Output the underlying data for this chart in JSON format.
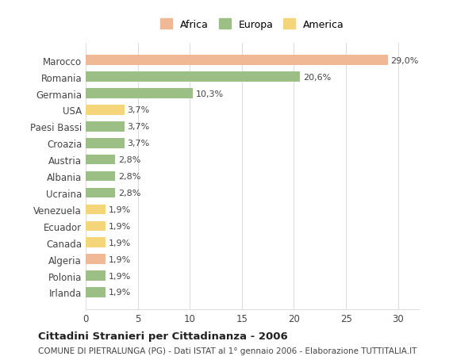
{
  "countries": [
    "Marocco",
    "Romania",
    "Germania",
    "USA",
    "Paesi Bassi",
    "Croazia",
    "Austria",
    "Albania",
    "Ucraina",
    "Venezuela",
    "Ecuador",
    "Canada",
    "Algeria",
    "Polonia",
    "Irlanda"
  ],
  "values": [
    29.0,
    20.6,
    10.3,
    3.7,
    3.7,
    3.7,
    2.8,
    2.8,
    2.8,
    1.9,
    1.9,
    1.9,
    1.9,
    1.9,
    1.9
  ],
  "labels": [
    "29,0%",
    "20,6%",
    "10,3%",
    "3,7%",
    "3,7%",
    "3,7%",
    "2,8%",
    "2,8%",
    "2,8%",
    "1,9%",
    "1,9%",
    "1,9%",
    "1,9%",
    "1,9%",
    "1,9%"
  ],
  "colors": [
    "#F0B895",
    "#9BBF85",
    "#9BBF85",
    "#F5D57A",
    "#9BBF85",
    "#9BBF85",
    "#9BBF85",
    "#9BBF85",
    "#9BBF85",
    "#F5D57A",
    "#F5D57A",
    "#F5D57A",
    "#F0B895",
    "#9BBF85",
    "#9BBF85"
  ],
  "legend": [
    {
      "label": "Africa",
      "color": "#F0B895"
    },
    {
      "label": "Europa",
      "color": "#9BBF85"
    },
    {
      "label": "America",
      "color": "#F5D57A"
    }
  ],
  "title": "Cittadini Stranieri per Cittadinanza - 2006",
  "subtitle": "COMUNE DI PIETRALUNGA (PG) - Dati ISTAT al 1° gennaio 2006 - Elaborazione TUTTITALIA.IT",
  "xlim": [
    0,
    32
  ],
  "xticks": [
    0,
    5,
    10,
    15,
    20,
    25,
    30
  ],
  "background_color": "#FFFFFF",
  "grid_color": "#DDDDDD"
}
